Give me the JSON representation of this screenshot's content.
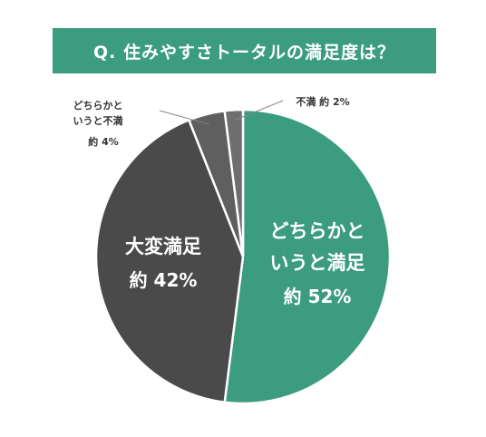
{
  "chart_data": {
    "type": "pie",
    "title": "Q. 住みやすさトータルの満足度は？",
    "slices": [
      {
        "key": "s1",
        "label": "どちらかというと満足",
        "label_lines": [
          "どちらかと",
          "いうと満足"
        ],
        "value_text": "約 52%",
        "value": 52,
        "color": "#3b9c80"
      },
      {
        "key": "s2",
        "label": "大変満足",
        "label_lines": [
          "大変満足"
        ],
        "value_text": "約 42%",
        "value": 42,
        "color": "#4a4a4a"
      },
      {
        "key": "s3",
        "label": "どちらかというと不満",
        "label_lines": [
          "どちらかと",
          "いうと不満"
        ],
        "value_text": "約 4%",
        "value": 4,
        "color": "#5f5f5f"
      },
      {
        "key": "s4",
        "label": "不満",
        "label_lines": [
          "不満"
        ],
        "value_text": "約 2%",
        "value": 2,
        "color": "#6e6e6e"
      }
    ],
    "start_angle_deg": 0,
    "direction": "clockwise",
    "legend": "none"
  },
  "colors": {
    "banner": "#3b9c80",
    "slice_border": "#ffffff",
    "leader_line": "#888888"
  }
}
